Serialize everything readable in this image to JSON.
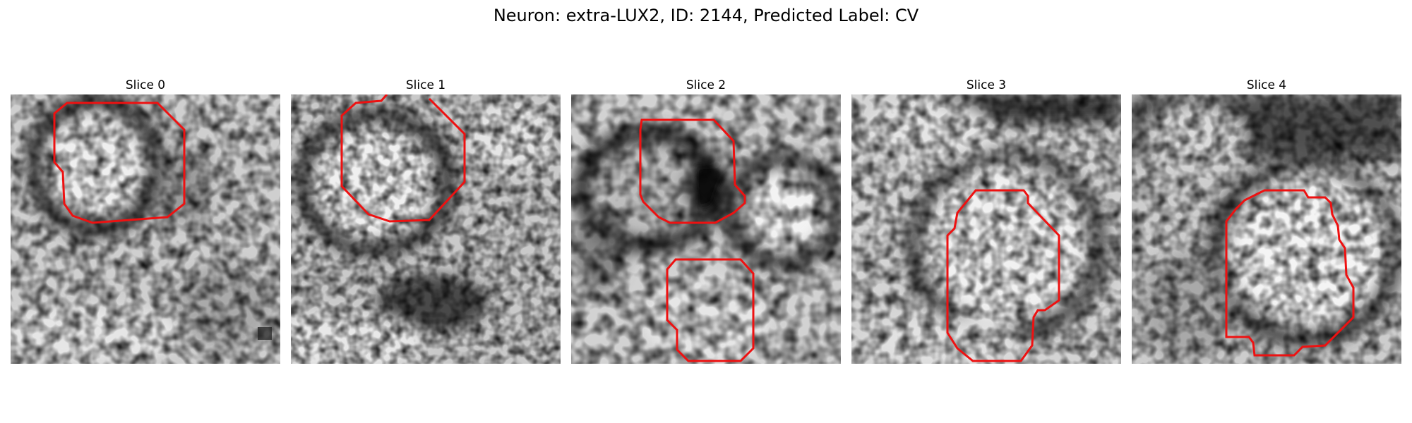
{
  "figure": {
    "title": "Neuron: extra-LUX2, ID: 2144, Predicted Label: CV"
  },
  "panels": [
    {
      "title": "Slice 0"
    },
    {
      "title": "Slice 1"
    },
    {
      "title": "Slice 2"
    },
    {
      "title": "Slice 3"
    },
    {
      "title": "Slice 4"
    }
  ],
  "colors": {
    "contour": "#ee1111",
    "image_colormap": "grayscale"
  }
}
